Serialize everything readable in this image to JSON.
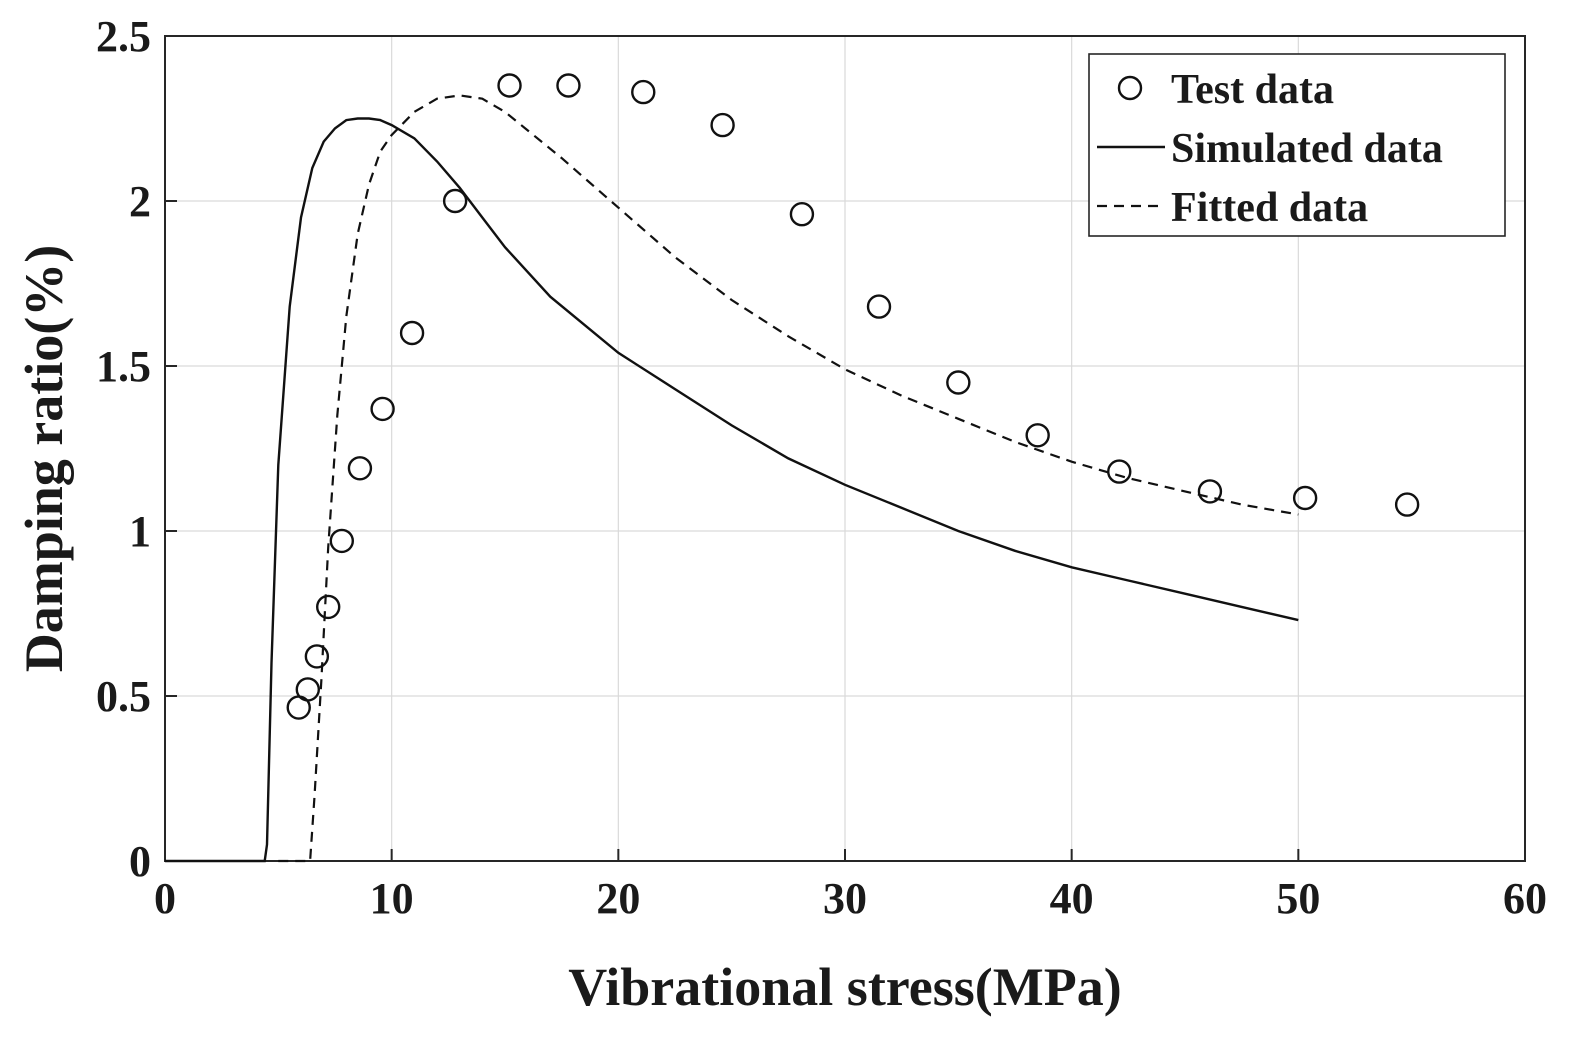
{
  "chart_data": {
    "type": "line",
    "title": "",
    "xlabel": "Vibrational stress(MPa)",
    "ylabel": "Damping ratio(%)",
    "xlim": [
      0,
      60
    ],
    "ylim": [
      0,
      2.5
    ],
    "xticks": [
      "0",
      "10",
      "20",
      "30",
      "40",
      "50",
      "60"
    ],
    "yticks": [
      "0",
      "0.5",
      "1",
      "1.5",
      "2",
      "2.5"
    ],
    "grid": true,
    "legend_position": "top-right",
    "series": [
      {
        "name": "Test data",
        "style": "markers",
        "marker": "circle",
        "x": [
          5.9,
          6.3,
          6.7,
          7.2,
          7.8,
          8.6,
          9.6,
          10.9,
          12.8,
          15.2,
          17.8,
          21.1,
          24.6,
          28.1,
          31.5,
          35.0,
          38.5,
          42.1,
          46.1,
          50.3,
          54.8
        ],
        "y": [
          0.465,
          0.52,
          0.62,
          0.77,
          0.97,
          1.19,
          1.37,
          1.6,
          2.0,
          2.35,
          2.35,
          2.33,
          2.23,
          1.96,
          1.68,
          1.45,
          1.29,
          1.18,
          1.12,
          1.1,
          1.08
        ]
      },
      {
        "name": "Simulated data",
        "style": "solid",
        "x": [
          0,
          4.4,
          4.5,
          4.7,
          5.0,
          5.5,
          6.0,
          6.5,
          7.0,
          7.5,
          8.0,
          8.5,
          9.0,
          9.5,
          10.0,
          11.0,
          12.0,
          13.0,
          14.0,
          15.0,
          17.0,
          20.0,
          22.5,
          25.0,
          27.5,
          30.0,
          32.5,
          35.0,
          37.5,
          40.0,
          42.5,
          45.0,
          47.5,
          50.0
        ],
        "y": [
          0,
          0,
          0.05,
          0.6,
          1.2,
          1.68,
          1.95,
          2.1,
          2.18,
          2.22,
          2.245,
          2.25,
          2.25,
          2.245,
          2.23,
          2.19,
          2.12,
          2.04,
          1.95,
          1.86,
          1.71,
          1.54,
          1.43,
          1.32,
          1.22,
          1.14,
          1.07,
          1.0,
          0.94,
          0.89,
          0.85,
          0.81,
          0.77,
          0.73
        ]
      },
      {
        "name": "Fitted data",
        "style": "dashed",
        "x": [
          5.0,
          6.4,
          6.6,
          6.9,
          7.2,
          7.6,
          8.0,
          8.5,
          9.0,
          9.5,
          10.0,
          11.0,
          12.0,
          13.0,
          14.0,
          15.0,
          17.5,
          20.0,
          22.5,
          25.0,
          27.5,
          30.0,
          32.5,
          35.0,
          37.5,
          40.0,
          42.5,
          45.0,
          47.5,
          50.0
        ],
        "y": [
          0,
          0,
          0.2,
          0.55,
          0.95,
          1.35,
          1.65,
          1.9,
          2.05,
          2.15,
          2.2,
          2.27,
          2.31,
          2.32,
          2.31,
          2.27,
          2.13,
          1.98,
          1.83,
          1.7,
          1.59,
          1.49,
          1.41,
          1.34,
          1.27,
          1.21,
          1.16,
          1.12,
          1.08,
          1.05
        ]
      }
    ]
  }
}
